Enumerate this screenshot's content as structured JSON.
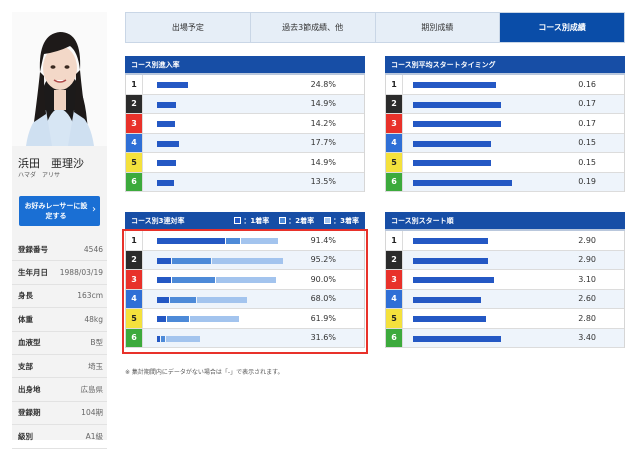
{
  "racer": {
    "name": "浜田　亜理沙",
    "kana": "ハマダ　アリサ",
    "favorite_button": "お好みレーサーに設定する",
    "info": [
      {
        "label": "登録番号",
        "value": "4546"
      },
      {
        "label": "生年月日",
        "value": "1988/03/19"
      },
      {
        "label": "身長",
        "value": "163cm"
      },
      {
        "label": "体重",
        "value": "48kg"
      },
      {
        "label": "血液型",
        "value": "B型"
      },
      {
        "label": "支部",
        "value": "埼玉"
      },
      {
        "label": "出身地",
        "value": "広島県"
      },
      {
        "label": "登録期",
        "value": "104期"
      },
      {
        "label": "級別",
        "value": "A1級"
      }
    ]
  },
  "tabs": [
    "出場予定",
    "過去3節成績、他",
    "期別成績",
    "コース別成績"
  ],
  "active_tab": 3,
  "lanes": [
    "1",
    "2",
    "3",
    "4",
    "5",
    "6"
  ],
  "lane_colors": {
    "1": {
      "bg": "#ffffff",
      "fg": "#222222"
    },
    "2": {
      "bg": "#2b2b2b",
      "fg": "#ffffff"
    },
    "3": {
      "bg": "#e8312a",
      "fg": "#ffffff"
    },
    "4": {
      "bg": "#2f6fd6",
      "fg": "#ffffff"
    },
    "5": {
      "bg": "#f4e13c",
      "fg": "#222222"
    },
    "6": {
      "bg": "#3caa3c",
      "fg": "#ffffff"
    }
  },
  "bar_colors": {
    "primary": "#2458c4",
    "second": "#4d8ad8",
    "third": "#a3c4ee"
  },
  "course_entry": {
    "title": "コース別進入率",
    "values": [
      24.8,
      14.9,
      14.2,
      17.7,
      14.9,
      13.5
    ],
    "labels": [
      "24.8%",
      "14.9%",
      "14.2%",
      "17.7%",
      "14.9%",
      "13.5%"
    ]
  },
  "course_timing": {
    "title": "コース別平均スタートタイミング",
    "values": [
      0.16,
      0.17,
      0.17,
      0.15,
      0.15,
      0.19
    ],
    "labels": [
      "0.16",
      "0.17",
      "0.17",
      "0.15",
      "0.15",
      "0.19"
    ]
  },
  "course_place3": {
    "title": "コース別3連対率",
    "legend": [
      "：1着率",
      "：2着率",
      "：3着率"
    ],
    "first": [
      52.0,
      11.0,
      11.0,
      9.0,
      7.0,
      2.6
    ],
    "second": [
      11.0,
      30.0,
      33.0,
      20.0,
      16.5,
      3.0
    ],
    "third": [
      28.4,
      54.2,
      46.0,
      39.0,
      38.4,
      26.0
    ],
    "labels": [
      "91.4%",
      "95.2%",
      "90.0%",
      "68.0%",
      "61.9%",
      "31.6%"
    ]
  },
  "course_order": {
    "title": "コース別スタート順",
    "values": [
      2.9,
      2.9,
      3.1,
      2.6,
      2.8,
      3.4
    ],
    "labels": [
      "2.90",
      "2.90",
      "3.10",
      "2.60",
      "2.80",
      "3.40"
    ]
  },
  "note": "※ 集計期間内にデータがない場合は「-」で表示されます。"
}
